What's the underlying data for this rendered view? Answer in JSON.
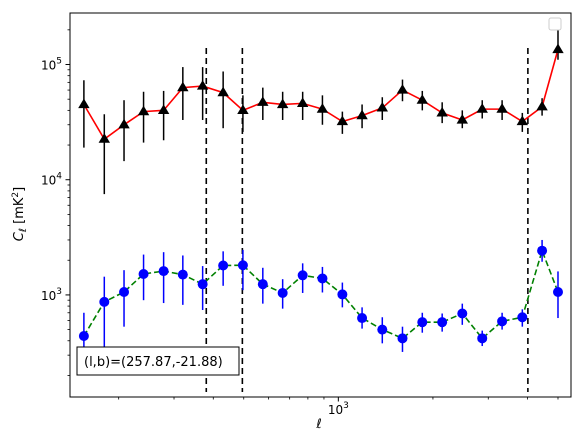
{
  "chart_data": {
    "type": "line",
    "title": "",
    "xlabel": "ℓ",
    "ylabel": "C_ℓ [mK²]",
    "xscale": "log",
    "yscale": "log",
    "xlim": [
      140,
      5500
    ],
    "ylim": [
      130,
      280000
    ],
    "x_ticks": [
      {
        "value": 1000,
        "base": "10",
        "exp": "3"
      }
    ],
    "y_ticks": [
      {
        "value": 1000,
        "base": "10",
        "exp": "3"
      },
      {
        "value": 10000,
        "base": "10",
        "exp": "4"
      },
      {
        "value": 100000,
        "base": "10",
        "exp": "5"
      }
    ],
    "grid": false,
    "legend": {
      "placement": "top-right",
      "entries": []
    },
    "annotation": "(l,b)=(257.87,-21.88)",
    "vlines": [
      {
        "x": 380
      },
      {
        "x": 495
      },
      {
        "x": 4010
      }
    ],
    "x": [
      155,
      180,
      208,
      240,
      278,
      320,
      370,
      430,
      497,
      575,
      665,
      770,
      890,
      1030,
      1190,
      1380,
      1600,
      1850,
      2140,
      2480,
      2870,
      3320,
      3850,
      4450,
      5000
    ],
    "series": [
      {
        "color": "#ff0000",
        "marker": "triangle",
        "marker_color": "#000000",
        "line_style": "solid",
        "values": [
          45000,
          22500,
          30000,
          39000,
          40000,
          63000,
          65000,
          57000,
          40000,
          47000,
          45000,
          46000,
          41000,
          32000,
          36000,
          42000,
          60000,
          49000,
          38000,
          33000,
          41000,
          41000,
          32000,
          43000,
          135000
        ],
        "err_low": [
          19000,
          7500,
          14500,
          21000,
          22000,
          33000,
          33000,
          28000,
          26000,
          33000,
          33000,
          33000,
          30000,
          25000,
          28000,
          33000,
          48000,
          40000,
          31000,
          28000,
          34000,
          33000,
          26000,
          36000,
          110000
        ],
        "err_high": [
          73000,
          37000,
          49000,
          58000,
          59000,
          95000,
          95000,
          87000,
          54000,
          63000,
          58000,
          58000,
          54000,
          39000,
          45000,
          52000,
          74000,
          59000,
          47000,
          40000,
          49000,
          49000,
          38000,
          51000,
          205000
        ]
      },
      {
        "color": "#008000",
        "marker": "circle",
        "marker_color": "#0000ff",
        "line_style": "dashed",
        "values": [
          440,
          870,
          1060,
          1520,
          1610,
          1500,
          1240,
          1800,
          1810,
          1240,
          1040,
          1480,
          1390,
          1010,
          630,
          500,
          420,
          580,
          580,
          690,
          420,
          590,
          640,
          2420,
          1060
        ],
        "err_low": [
          270,
          300,
          530,
          900,
          850,
          820,
          740,
          1200,
          1100,
          840,
          760,
          1040,
          1050,
          780,
          510,
          380,
          320,
          470,
          480,
          550,
          360,
          500,
          530,
          1940,
          630
        ],
        "err_high": [
          700,
          1440,
          1640,
          2240,
          2350,
          2200,
          1780,
          2390,
          2460,
          1720,
          1370,
          1880,
          1750,
          1280,
          780,
          640,
          530,
          700,
          690,
          840,
          490,
          700,
          750,
          3000,
          1600
        ]
      }
    ]
  }
}
